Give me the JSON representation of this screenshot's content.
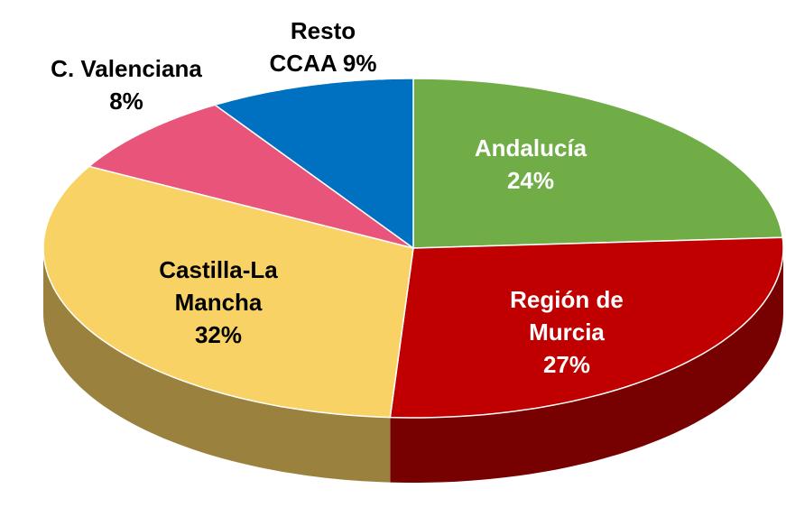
{
  "chart_data": {
    "type": "pie",
    "categories": [
      "Andalucía",
      "Región de Murcia",
      "Castilla-La Mancha",
      "C. Valenciana",
      "Resto CCAA"
    ],
    "values": [
      24,
      27,
      32,
      8,
      9
    ],
    "value_labels": [
      "24%",
      "27%",
      "32%",
      "8%",
      "9%"
    ],
    "colors": [
      "#70ad47",
      "#c00000",
      "#f8d264",
      "#e8547a",
      "#0070c0"
    ]
  }
}
